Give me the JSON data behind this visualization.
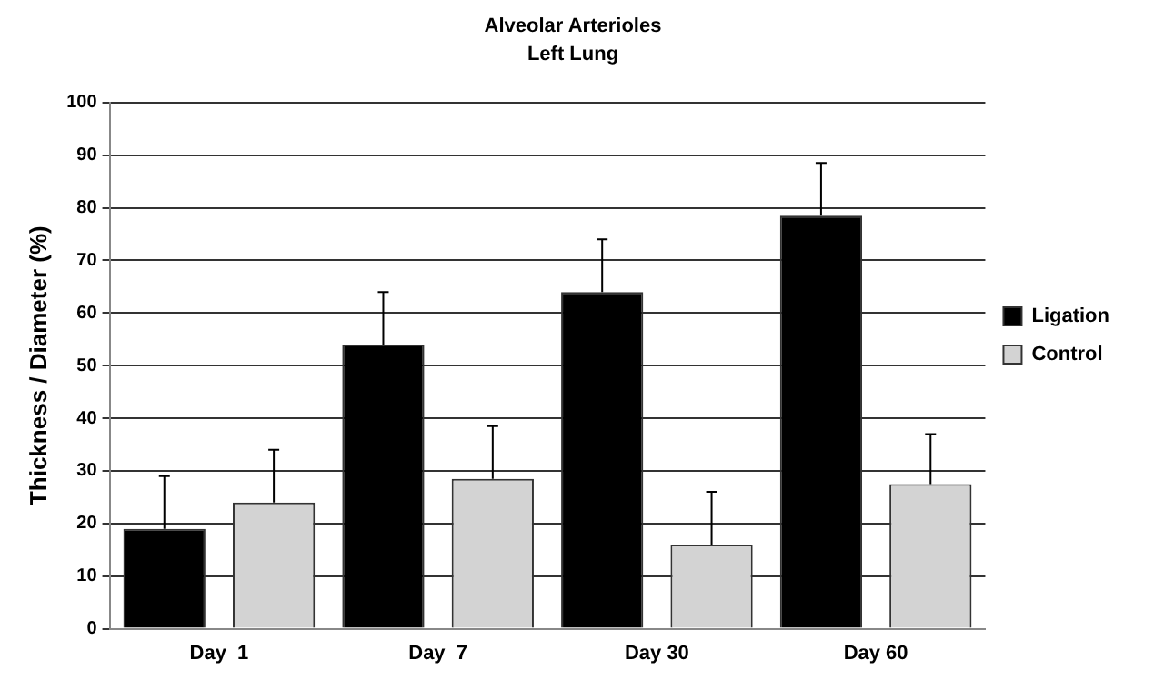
{
  "chart_data": {
    "type": "bar",
    "title": "Alveolar Arterioles",
    "subtitle": "Left Lung",
    "ylabel": "Thickness / Diameter (%)",
    "categories": [
      "Day  1",
      "Day  7",
      "Day 30",
      "Day 60"
    ],
    "series": [
      {
        "name": "Ligation",
        "color": "#000000",
        "values": [
          19,
          54,
          64,
          78.5
        ],
        "errors": [
          [
            19,
            29
          ],
          [
            54,
            64
          ],
          [
            64,
            74
          ],
          [
            78.5,
            88.5
          ]
        ]
      },
      {
        "name": "Control",
        "color": "#d3d3d3",
        "values": [
          24,
          28.5,
          16,
          27.5
        ],
        "errors": [
          [
            24,
            34
          ],
          [
            28.5,
            38.5
          ],
          [
            16,
            26
          ],
          [
            27.5,
            37
          ]
        ]
      }
    ],
    "ylim": [
      0,
      100
    ],
    "yticks": [
      0,
      10,
      20,
      30,
      40,
      50,
      60,
      70,
      80,
      90,
      100
    ],
    "grid": "y",
    "legend": "right"
  }
}
